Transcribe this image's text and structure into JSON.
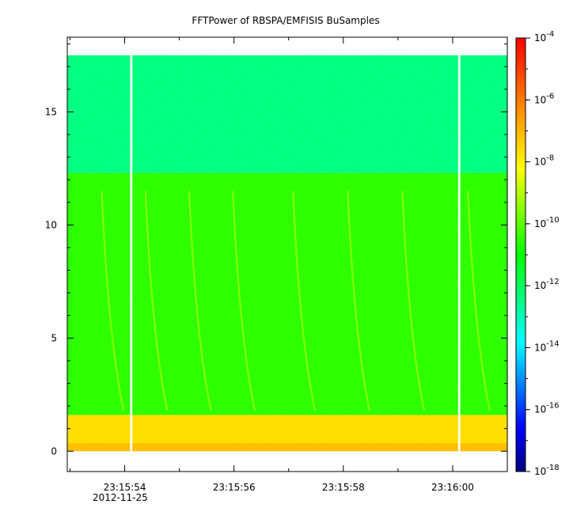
{
  "chart_data": {
    "type": "heatmap",
    "title": "FFTPower of RBSPA/EMFISIS  BuSamples",
    "x_axis": {
      "tick_labels": [
        "23:15:54",
        "23:15:56",
        "23:15:58",
        "23:16:00"
      ],
      "tick_seconds": [
        54,
        56,
        58,
        60
      ],
      "minor_tick_seconds": [
        53,
        55,
        57,
        59,
        61
      ],
      "date_label": "2012-11-25",
      "range_seconds": [
        52.95,
        61.0
      ]
    },
    "y_axis": {
      "tick_labels": [
        "0",
        "5",
        "10",
        "15"
      ],
      "ticks": [
        0,
        5,
        10,
        15
      ],
      "minor_ticks": [
        1,
        2,
        3,
        4,
        6,
        7,
        8,
        9,
        11,
        12,
        13,
        14,
        16,
        17,
        18
      ],
      "range": [
        -0.9,
        18.3
      ]
    },
    "colorbar": {
      "scale": "log",
      "range": [
        1e-18,
        0.0001
      ],
      "tick_mantissa": "10",
      "tick_exponents": [
        "-18",
        "-16",
        "-14",
        "-12",
        "-10",
        "-8",
        "-6",
        "-4"
      ],
      "colormap": [
        "#00007f",
        "#0000ff",
        "#007fff",
        "#00ffff",
        "#00ff80",
        "#00ff00",
        "#80ff00",
        "#ffff00",
        "#ffaa00",
        "#ff5500",
        "#ff0000"
      ]
    },
    "data_extent": {
      "x_seconds": [
        52.95,
        61.0
      ],
      "y": [
        0,
        17.5
      ]
    },
    "gaps_seconds": [
      [
        54.1,
        54.14
      ],
      [
        60.1,
        60.14
      ]
    ],
    "bands": [
      {
        "y_range": [
          12.3,
          17.5
        ],
        "log_power": -12.2,
        "color": "#00ff80"
      },
      {
        "y_range": [
          1.6,
          12.3
        ],
        "log_power": -10.5,
        "color": "#2bff00"
      },
      {
        "y_range": [
          0,
          1.6
        ],
        "log_power": -8.3,
        "color": "#ffde00"
      }
    ],
    "bright_streaks_seconds": [
      53.7,
      54.5,
      55.3,
      56.1,
      57.2,
      58.2,
      59.2,
      60.4
    ]
  }
}
